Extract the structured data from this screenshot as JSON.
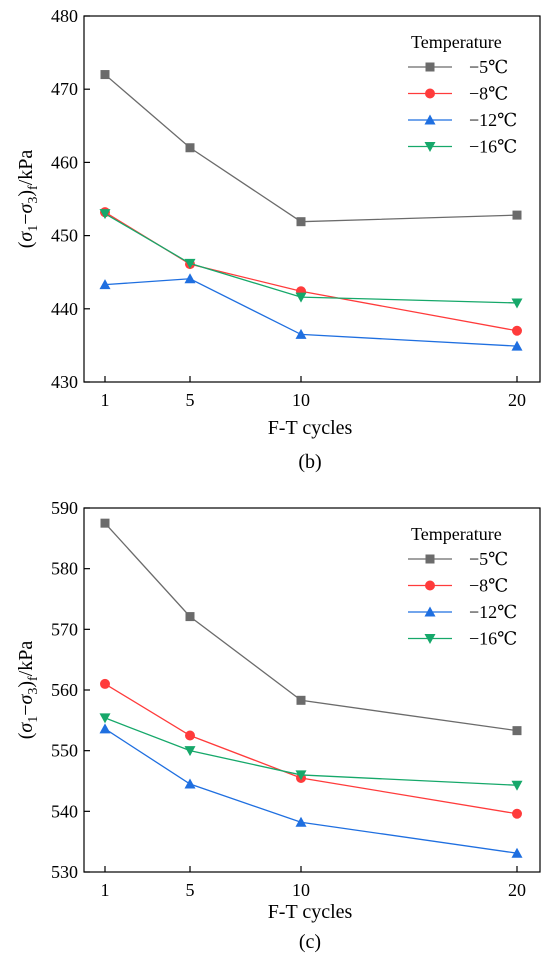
{
  "chart_data": [
    {
      "type": "line",
      "panel_label": "(b)",
      "xlabel": "F-T cycles",
      "ylabel": "(σ1−σ3)f/kPa",
      "categories": [
        "1",
        "5",
        "10",
        "20"
      ],
      "ylim": [
        430,
        480
      ],
      "yticks": [
        430,
        440,
        450,
        460,
        470,
        480
      ],
      "grid": false,
      "legend_title": "Temperature",
      "legend_position": "top-right",
      "series": [
        {
          "name": "−5℃",
          "color": "#6b6b6b",
          "marker": "square",
          "values": [
            472.0,
            462.0,
            451.9,
            452.8
          ]
        },
        {
          "name": "−8℃",
          "color": "#ff3b3b",
          "marker": "circle",
          "values": [
            453.2,
            446.1,
            442.4,
            437.0
          ]
        },
        {
          "name": "−12℃",
          "color": "#1f6fe0",
          "marker": "triangle-up",
          "values": [
            443.3,
            444.1,
            436.5,
            434.9
          ]
        },
        {
          "name": "−16℃",
          "color": "#16a86a",
          "marker": "triangle-down",
          "values": [
            453.0,
            446.2,
            441.6,
            440.8
          ]
        }
      ]
    },
    {
      "type": "line",
      "panel_label": "(c)",
      "xlabel": "F-T cycles",
      "ylabel": "(σ1−σ3)f/kPa",
      "categories": [
        "1",
        "5",
        "10",
        "20"
      ],
      "ylim": [
        530,
        590
      ],
      "yticks": [
        530,
        540,
        550,
        560,
        570,
        580,
        590
      ],
      "grid": false,
      "legend_title": "Temperature",
      "legend_position": "top-right",
      "series": [
        {
          "name": "−5℃",
          "color": "#6b6b6b",
          "marker": "square",
          "values": [
            587.5,
            572.1,
            558.3,
            553.3
          ]
        },
        {
          "name": "−8℃",
          "color": "#ff3b3b",
          "marker": "circle",
          "values": [
            561.0,
            552.5,
            545.5,
            539.6
          ]
        },
        {
          "name": "−12℃",
          "color": "#1f6fe0",
          "marker": "triangle-up",
          "values": [
            553.6,
            544.5,
            538.2,
            533.1
          ]
        },
        {
          "name": "−16℃",
          "color": "#16a86a",
          "marker": "triangle-down",
          "values": [
            555.4,
            550.0,
            546.0,
            544.3
          ]
        }
      ]
    }
  ]
}
